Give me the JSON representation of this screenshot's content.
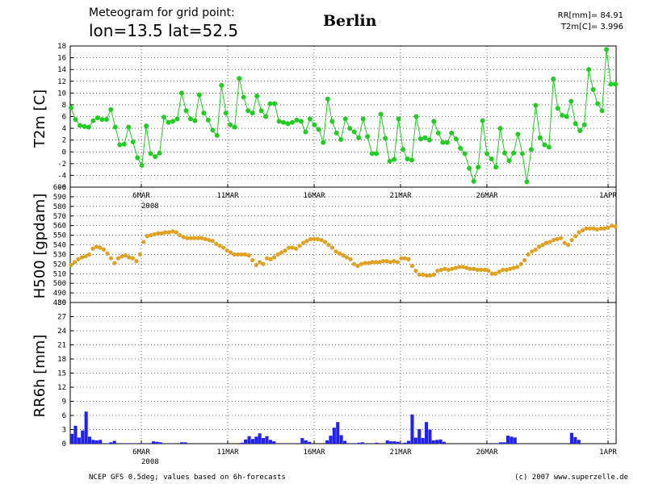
{
  "header": {
    "line1": "Meteogram for grid point:",
    "line2": "lon=13.5 lat=52.5",
    "city": "Berlin",
    "rr_sum": "RR[mm]= 84.91",
    "t2m_mean": "T2m[C]= 3.996"
  },
  "footer": {
    "left": "NCEP GFS 0.5deg; values based on 6h-forecasts",
    "right": "(c) 2007 www.superzelle.de"
  },
  "colors": {
    "t2m": "#22cc22",
    "h500": "#e0a020",
    "rr": "#2222ee",
    "grid": "#000000"
  },
  "chart_data": [
    {
      "type": "line",
      "ylabel": "T2m [C]",
      "ylim": [
        -6,
        18
      ],
      "yticks": [
        "-6",
        "-4",
        "-2",
        "0",
        "2",
        "4",
        "6",
        "8",
        "10",
        "12",
        "14",
        "16",
        "18"
      ],
      "xticks": [
        "6MAR",
        "11MAR",
        "16MAR",
        "21MAR",
        "26MAR",
        "1APR"
      ],
      "year_label": "2008",
      "x_step_hours": 6,
      "series": [
        {
          "values": [
            7.5,
            5.5,
            4.5,
            4.3,
            4.2,
            5.3,
            5.8,
            5.5,
            5.5,
            7.2,
            4.2,
            1.2,
            1.3,
            4.2,
            1.7,
            -1.0,
            -2.3,
            4.4,
            -0.3,
            -0.8,
            -0.2,
            5.9,
            5.0,
            5.2,
            5.6,
            10.0,
            7.0,
            5.6,
            5.3,
            9.7,
            6.6,
            5.4,
            3.7,
            2.8,
            11.3,
            6.6,
            4.6,
            4.2,
            12.5,
            9.3,
            7.0,
            6.6,
            9.5,
            7.0,
            6.0,
            8.2,
            8.2,
            5.2,
            5.0,
            4.8,
            5.0,
            5.4,
            5.2,
            3.4,
            5.6,
            4.6,
            3.8,
            1.6,
            9.0,
            5.2,
            3.2,
            2.1,
            5.6,
            4.0,
            3.4,
            2.4,
            5.6,
            2.6,
            -0.3,
            -0.3,
            6.4,
            2.3,
            -1.6,
            -1.3,
            5.6,
            0.4,
            -1.2,
            -1.4,
            6.0,
            2.2,
            2.4,
            2.0,
            5.2,
            3.2,
            1.6,
            1.6,
            3.2,
            2.2,
            0.6,
            -0.3,
            -2.8,
            -5.0,
            -2.6,
            5.3,
            -0.3,
            -1.2,
            -2.6,
            4.0,
            -0.2,
            -1.5,
            -0.2,
            3.0,
            -0.3,
            -5.1,
            0.4,
            7.9,
            2.4,
            1.2,
            0.8,
            12.4,
            7.4,
            6.2,
            6.0,
            8.6,
            4.8,
            3.6,
            4.6,
            14.0,
            10.6,
            8.2,
            7.0,
            17.4,
            11.5,
            11.5
          ]
        }
      ]
    },
    {
      "type": "scatter",
      "ylabel": "H500 [gpdam]",
      "ylim": [
        480,
        600
      ],
      "yticks": [
        "480",
        "490",
        "500",
        "510",
        "520",
        "530",
        "540",
        "550",
        "560",
        "570",
        "580",
        "590",
        "600"
      ],
      "xticks": [
        "6MAR",
        "11MAR",
        "16MAR",
        "21MAR",
        "26MAR",
        "1APR"
      ],
      "year_label": "2008",
      "series": [
        {
          "values": [
            519,
            522,
            525,
            527,
            528,
            530,
            536,
            538,
            537,
            535,
            531,
            526,
            521,
            526,
            528,
            529,
            527,
            526,
            523,
            530,
            543,
            549,
            550,
            551,
            552,
            552,
            553,
            553,
            554,
            553,
            550,
            548,
            547,
            547,
            547,
            547,
            547,
            546,
            545,
            544,
            541,
            539,
            537,
            534,
            532,
            530,
            530,
            530,
            530,
            529,
            524,
            519,
            522,
            520,
            526,
            525,
            527,
            530,
            532,
            534,
            537,
            537,
            536,
            539,
            542,
            544,
            546,
            546,
            546,
            545,
            543,
            540,
            537,
            533,
            531,
            529,
            527,
            525,
            520,
            518,
            520,
            521,
            521,
            522,
            522,
            522,
            523,
            523,
            522,
            523,
            522,
            526,
            526,
            525,
            518,
            513,
            509,
            509,
            508,
            508,
            509,
            513,
            514,
            515,
            514,
            515,
            516,
            517,
            517,
            516,
            515,
            515,
            514,
            514,
            514,
            513,
            510,
            510,
            512,
            514,
            514,
            515,
            516,
            517,
            520,
            524,
            530,
            533,
            535,
            538,
            540,
            542,
            543,
            545,
            546,
            547,
            542,
            540,
            545,
            549,
            553,
            555,
            557,
            557,
            557,
            556,
            557,
            557,
            558,
            560,
            559
          ]
        }
      ]
    },
    {
      "type": "bar",
      "ylabel": "RR6h [mm]",
      "ylim": [
        0,
        30
      ],
      "yticks": [
        "0",
        "3",
        "6",
        "9",
        "12",
        "15",
        "18",
        "21",
        "24",
        "27",
        "30"
      ],
      "xticks": [
        "6MAR",
        "11MAR",
        "16MAR",
        "21MAR",
        "26MAR",
        "1APR"
      ],
      "year_label": "2008",
      "series": [
        {
          "values": [
            2.1,
            3.8,
            1.3,
            2.8,
            6.8,
            1.5,
            0.8,
            0.7,
            0.8,
            0,
            0.1,
            0.3,
            0.6,
            0,
            0,
            0.1,
            0.1,
            0,
            0.1,
            0,
            0.1,
            0,
            0,
            0.5,
            0.4,
            0.3,
            0,
            0,
            0.1,
            0,
            0,
            0.3,
            0.3,
            0,
            0,
            0,
            0,
            0,
            0,
            0,
            0,
            0,
            0,
            0,
            0,
            0,
            0,
            0,
            0.2,
            0.9,
            1.6,
            1.0,
            1.5,
            2.2,
            1.2,
            1.6,
            0.8,
            0.5,
            0,
            0,
            0.1,
            0,
            0,
            0.1,
            0,
            1.2,
            0.7,
            0.4,
            0,
            0,
            0,
            0,
            0.7,
            1.7,
            3.4,
            4.6,
            1.8,
            0.6,
            0,
            0,
            0.1,
            0.2,
            0.3,
            0,
            0,
            0.1,
            0.2,
            0,
            0,
            0.7,
            0.5,
            0.5,
            0.4,
            0,
            0.2,
            0.6,
            6.2,
            1.3,
            3.1,
            1.2,
            4.6,
            3.0,
            0.7,
            0.8,
            0.9,
            0.4,
            0,
            0,
            0,
            0,
            0,
            0,
            0,
            0,
            0,
            0,
            0,
            0,
            0,
            0.1,
            0.1,
            0.3,
            0.3,
            1.7,
            1.5,
            1.3,
            0,
            0,
            0,
            0,
            0,
            0,
            0,
            0,
            0,
            0,
            0,
            0,
            0,
            0,
            0,
            2.3,
            1.4,
            0.8,
            0,
            0,
            0,
            0,
            0,
            0,
            0,
            0,
            0,
            0
          ]
        }
      ]
    }
  ]
}
